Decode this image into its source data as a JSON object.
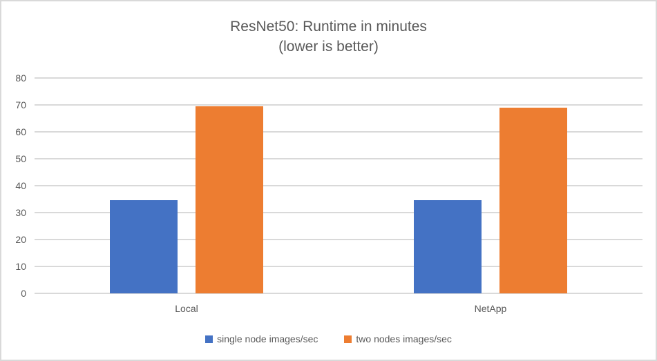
{
  "chart_data": {
    "type": "bar",
    "title": "ResNet50: Runtime in minutes",
    "subtitle": "(lower is better)",
    "categories": [
      "Local",
      "NetApp"
    ],
    "series": [
      {
        "name": "single node images/sec",
        "color": "#4472C4",
        "values": [
          34.5,
          34.5
        ]
      },
      {
        "name": "two nodes images/sec",
        "color": "#ED7D31",
        "values": [
          69.5,
          69
        ]
      }
    ],
    "ylim": [
      0,
      80
    ],
    "yticks": [
      0,
      10,
      20,
      30,
      40,
      50,
      60,
      70,
      80
    ],
    "xlabel": "",
    "ylabel": "",
    "grid": true,
    "legend_position": "bottom"
  }
}
